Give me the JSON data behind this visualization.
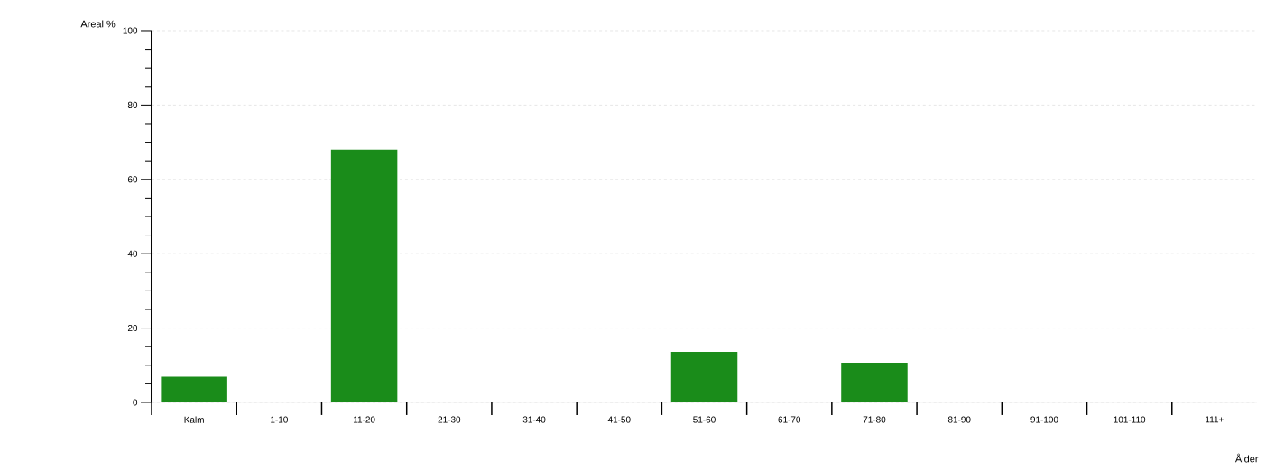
{
  "chart_data": {
    "type": "bar",
    "xlabel": "Ålder",
    "ylabel": "Areal %",
    "categories": [
      "Kalm",
      "1-10",
      "11-20",
      "21-30",
      "31-40",
      "41-50",
      "51-60",
      "61-70",
      "71-80",
      "81-90",
      "91-100",
      "101-110",
      "111+"
    ],
    "values": [
      6.9,
      0,
      68,
      0,
      0,
      0,
      13.6,
      0,
      10.7,
      0,
      0,
      0,
      0
    ],
    "color": "#1a8c1a",
    "ylim": [
      0,
      100
    ],
    "yticks": [
      0,
      20,
      40,
      60,
      80,
      100
    ],
    "grid": "y"
  }
}
